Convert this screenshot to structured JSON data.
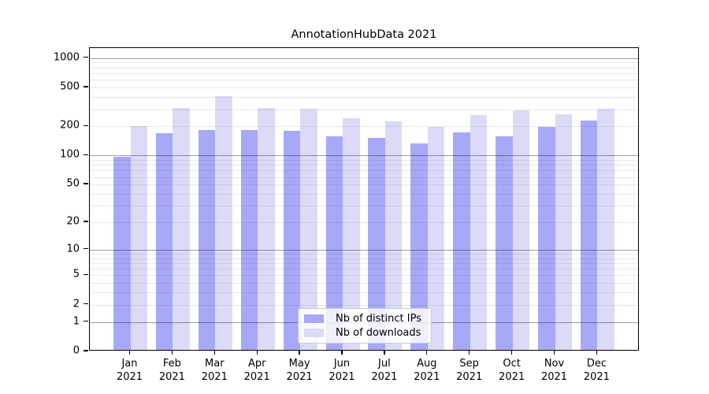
{
  "chart_data": {
    "type": "bar",
    "title": "AnnotationHubData 2021",
    "categories": [
      "Jan",
      "Feb",
      "Mar",
      "Apr",
      "May",
      "Jun",
      "Jul",
      "Aug",
      "Sep",
      "Oct",
      "Nov",
      "Dec"
    ],
    "year_label": "2021",
    "series": [
      {
        "name": "Nb of distinct IPs",
        "color": "#a8a8f8",
        "values": [
          93,
          163,
          175,
          177,
          173,
          153,
          145,
          129,
          166,
          152,
          191,
          220
        ]
      },
      {
        "name": "Nb of downloads",
        "color": "#dbdbf8",
        "values": [
          195,
          296,
          395,
          296,
          290,
          235,
          215,
          191,
          250,
          281,
          256,
          292
        ]
      }
    ],
    "yscale": "log1p",
    "ylim": [
      0,
      1266
    ],
    "ytick_labels": [
      0,
      1,
      2,
      5,
      10,
      20,
      50,
      100,
      200,
      500,
      1000
    ],
    "major_gridlines": [
      1,
      10,
      100,
      1000
    ],
    "minor_gridlines": [
      2,
      3,
      4,
      5,
      6,
      7,
      8,
      9,
      20,
      30,
      40,
      50,
      60,
      70,
      80,
      90,
      200,
      300,
      400,
      500,
      600,
      700,
      800,
      900
    ],
    "grid": true,
    "legend_position": "lower-center-inside"
  }
}
